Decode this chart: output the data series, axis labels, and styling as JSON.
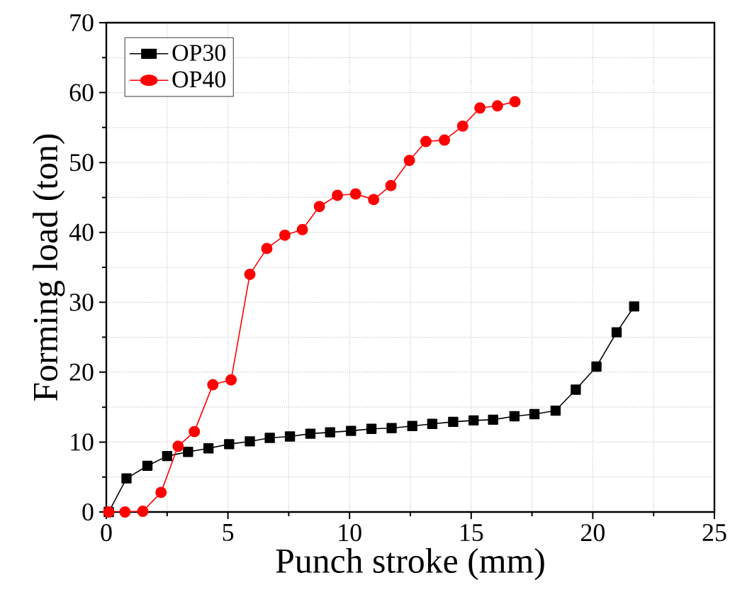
{
  "chart_data": {
    "type": "line",
    "xlabel": "Punch stroke (mm)",
    "ylabel": "Forming load (ton)",
    "xlim": [
      0,
      25
    ],
    "ylim": [
      0,
      70
    ],
    "xticks": [
      0,
      5,
      10,
      15,
      20,
      25
    ],
    "yticks": [
      0,
      10,
      20,
      30,
      40,
      50,
      60,
      70
    ],
    "grid": true,
    "legend": "top left",
    "line_style": "solid",
    "series": [
      {
        "name": "OP30",
        "color": "#000000",
        "marker": "square",
        "x": [
          0.1,
          0.83,
          1.69,
          2.5,
          3.36,
          4.2,
          5.05,
          5.9,
          6.72,
          7.55,
          8.39,
          9.2,
          10.06,
          10.9,
          11.73,
          12.58,
          13.4,
          14.26,
          15.1,
          15.9,
          16.78,
          17.6,
          18.47,
          19.3,
          20.15,
          20.98,
          21.7
        ],
        "values": [
          0,
          4.8,
          6.6,
          8.0,
          8.6,
          9.1,
          9.7,
          10.1,
          10.6,
          10.8,
          11.2,
          11.4,
          11.6,
          11.9,
          12.0,
          12.3,
          12.6,
          12.9,
          13.1,
          13.2,
          13.7,
          14.0,
          14.5,
          17.5,
          20.8,
          25.7,
          29.4
        ]
      },
      {
        "name": "OP40",
        "color": "#ff0000",
        "marker": "circle",
        "x": [
          0.1,
          0.77,
          1.5,
          2.25,
          2.95,
          3.62,
          4.38,
          5.13,
          5.9,
          6.6,
          7.34,
          8.06,
          8.76,
          9.5,
          10.25,
          10.99,
          11.7,
          12.46,
          13.14,
          13.9,
          14.65,
          15.36,
          16.08,
          16.8
        ],
        "values": [
          0,
          0,
          0.1,
          2.8,
          9.4,
          11.5,
          18.2,
          18.9,
          34.0,
          37.7,
          39.6,
          40.4,
          43.7,
          45.3,
          45.5,
          44.7,
          46.7,
          50.3,
          53.0,
          53.2,
          55.2,
          57.8,
          58.1,
          58.7
        ]
      }
    ]
  }
}
